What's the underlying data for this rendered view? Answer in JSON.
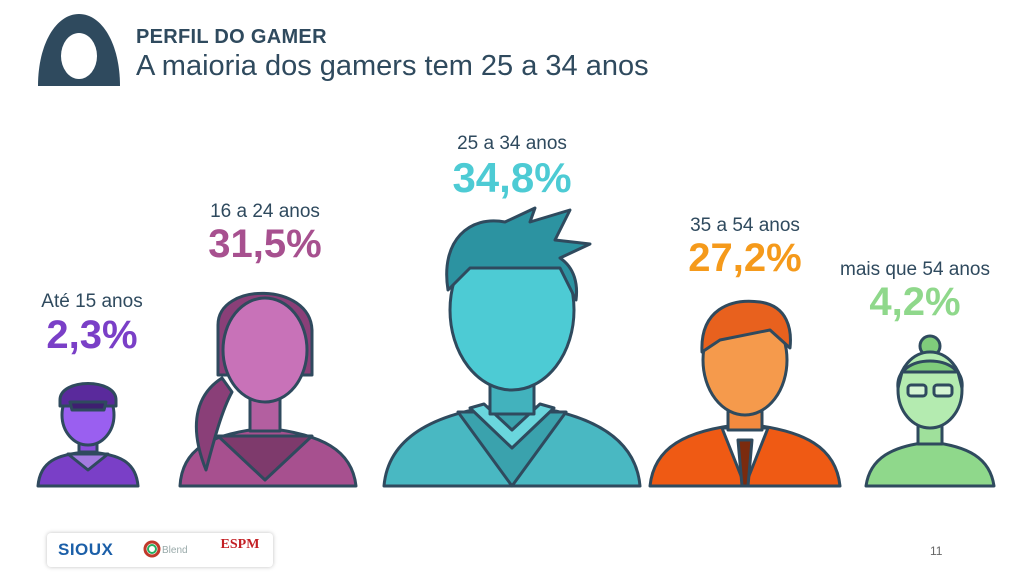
{
  "header": {
    "kicker": "PERFIL DO GAMER",
    "title": "A maioria dos gamers tem 25 a 34 anos"
  },
  "chart_data": {
    "type": "pictogram",
    "title": "A maioria dos gamers tem 25 a 34 anos",
    "categories": [
      "Até 15 anos",
      "16 a 24 anos",
      "25 a 34 anos",
      "35 a 54 anos",
      "mais que 54 anos"
    ],
    "values": [
      2.3,
      31.5,
      34.8,
      27.2,
      4.2
    ],
    "value_labels": [
      "2,3%",
      "31,5%",
      "34,8%",
      "27,2%",
      "4,2%"
    ],
    "unit": "%",
    "colors": [
      "#7a3fc7",
      "#a7508f",
      "#4dcbd4",
      "#f59a1b",
      "#8fd88b"
    ]
  },
  "footer": {
    "logos": [
      "SIOUX",
      "Blend",
      "ESPM"
    ],
    "page_number": "11"
  }
}
